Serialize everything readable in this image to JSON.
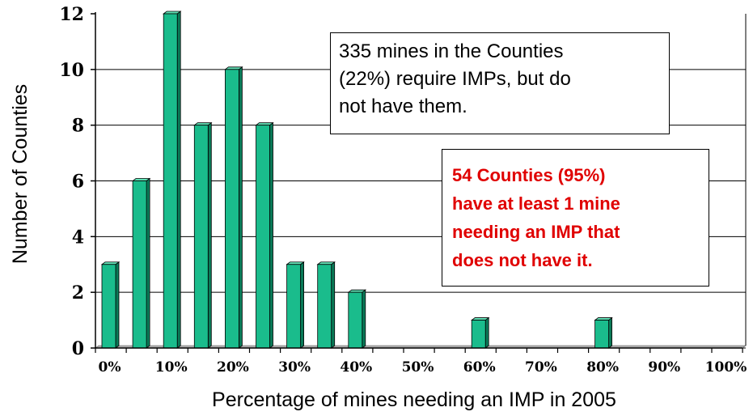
{
  "chart_data": {
    "type": "bar",
    "title": "",
    "xlabel": "Percentage of mines needing an IMP in 2005",
    "ylabel": "Number of Counties",
    "ylim": [
      0,
      12
    ],
    "y_ticks": [
      "0",
      "2",
      "4",
      "6",
      "8",
      "10",
      "12"
    ],
    "x_tick_labels": [
      "0%",
      "10%",
      "20%",
      "30%",
      "40%",
      "50%",
      "60%",
      "70%",
      "80%",
      "90%",
      "100%"
    ],
    "categories": [
      "0%",
      "5%",
      "10%",
      "15%",
      "20%",
      "25%",
      "30%",
      "35%",
      "40%",
      "45%",
      "50%",
      "55%",
      "60%",
      "65%",
      "70%",
      "75%",
      "80%",
      "85%",
      "90%",
      "95%",
      "100%"
    ],
    "values": [
      3,
      6,
      12,
      8,
      10,
      8,
      3,
      3,
      2,
      0,
      0,
      0,
      1,
      0,
      0,
      0,
      1,
      0,
      0,
      0,
      0
    ],
    "grid": true,
    "colors": {
      "bar_front": "#1abc8c",
      "bar_side": "#0a7a58",
      "bar_top": "#5fe0b5",
      "floor": "#b0b0b0"
    },
    "annotations": [
      {
        "lines": [
          "335 mines in the Counties",
          "(22%) require IMPs, but do",
          "not have them."
        ]
      },
      {
        "lines": [
          "54 Counties (95%)",
          "have at least 1 mine",
          "needing an IMP that",
          "does not have it."
        ],
        "color": "#e00000"
      }
    ]
  }
}
